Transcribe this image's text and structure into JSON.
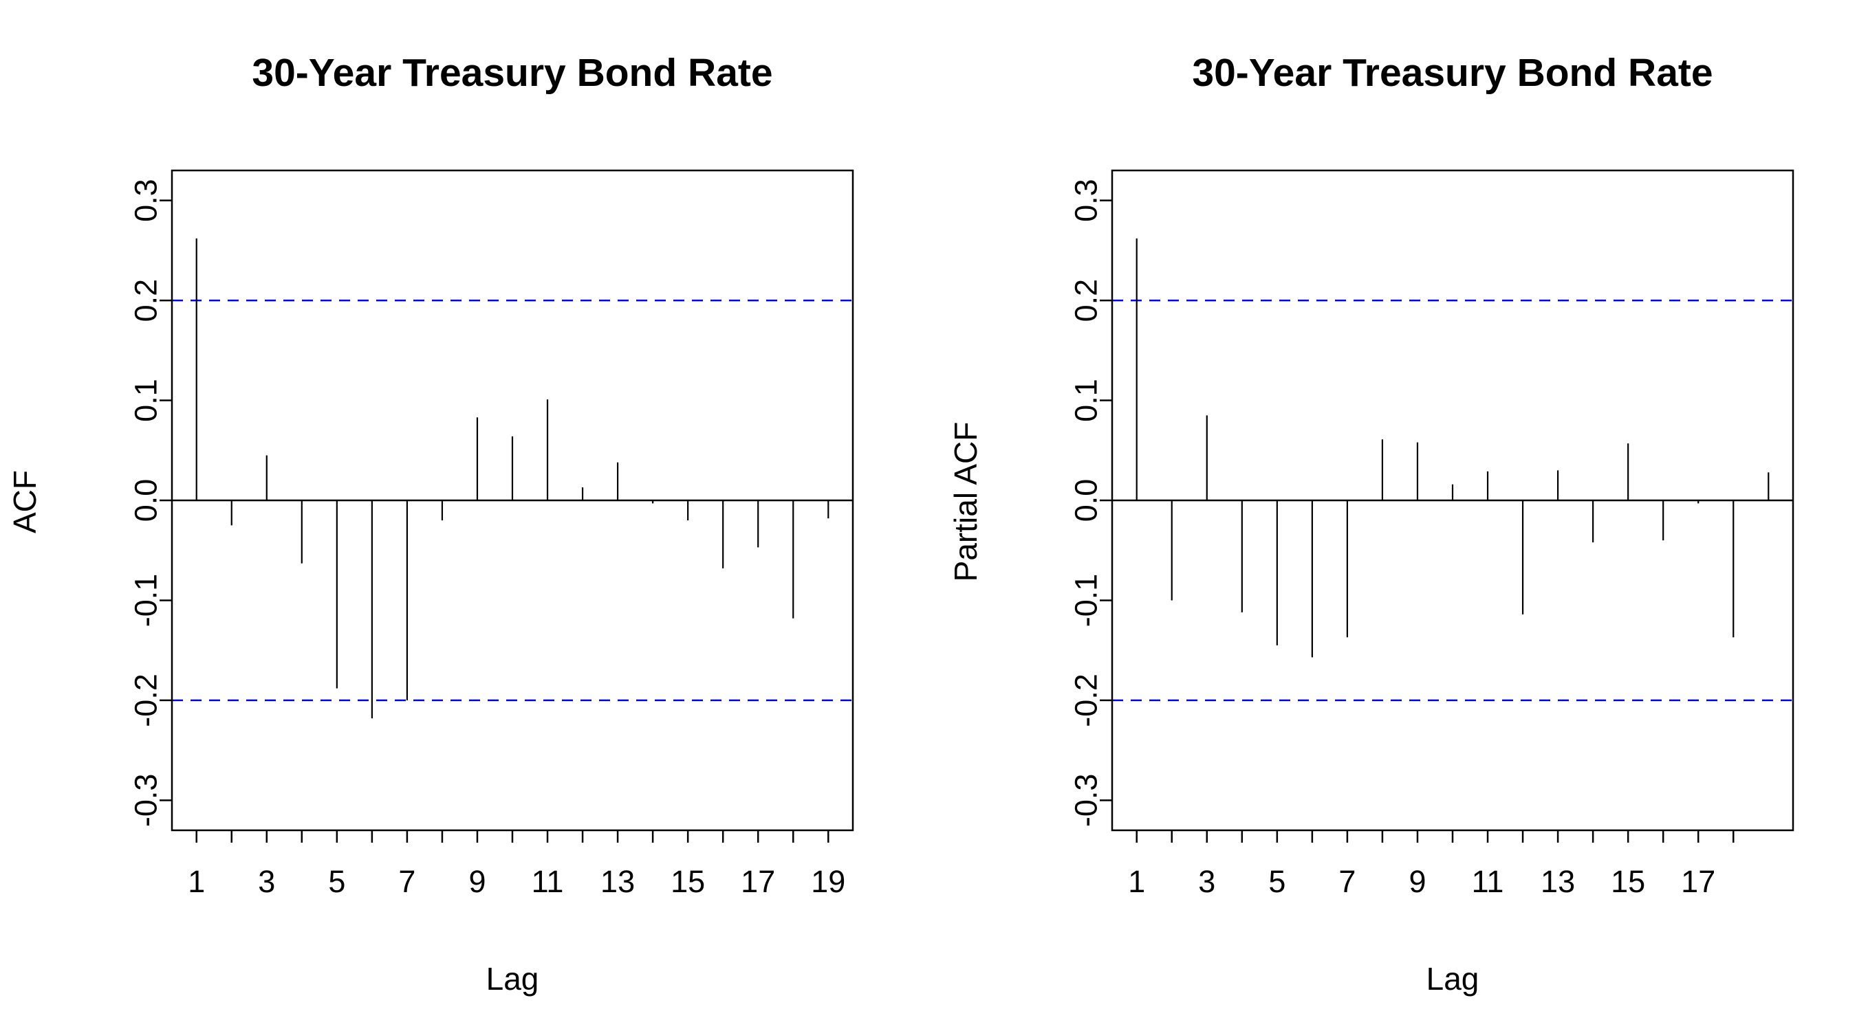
{
  "colors": {
    "confidence_band": "#0000ff",
    "spike": "#000000"
  },
  "chart_data": [
    {
      "type": "bar",
      "title": "30-Year Treasury Bond Rate",
      "xlabel": "Lag",
      "ylabel": "ACF",
      "ylim": [
        -0.33,
        0.33
      ],
      "yticks": [
        "-0.3",
        "-0.2",
        "-0.1",
        "0.0",
        "0.1",
        "0.2",
        "0.3"
      ],
      "xlim": [
        0.3,
        19.7
      ],
      "xticks": [
        1,
        2,
        3,
        4,
        5,
        6,
        7,
        8,
        9,
        10,
        11,
        12,
        13,
        14,
        15,
        16,
        17,
        18,
        19
      ],
      "xtick_labels": [
        "1",
        "",
        "3",
        "",
        "5",
        "",
        "7",
        "",
        "9",
        "",
        "11",
        "",
        "13",
        "",
        "15",
        "",
        "17",
        "",
        "19"
      ],
      "confidence_bounds": [
        0.2,
        -0.2
      ],
      "x": [
        1,
        2,
        3,
        4,
        5,
        6,
        7,
        8,
        9,
        10,
        11,
        12,
        13,
        14,
        15,
        16,
        17,
        18,
        19
      ],
      "values": [
        0.262,
        -0.025,
        0.045,
        -0.063,
        -0.188,
        -0.218,
        -0.2,
        -0.02,
        0.083,
        0.064,
        0.101,
        0.013,
        0.038,
        -0.003,
        -0.02,
        -0.068,
        -0.047,
        -0.118,
        -0.018
      ],
      "grid": false
    },
    {
      "type": "bar",
      "title": "30-Year Treasury Bond Rate",
      "xlabel": "Lag",
      "ylabel": "Partial ACF",
      "ylim": [
        -0.33,
        0.33
      ],
      "yticks": [
        "-0.3",
        "-0.2",
        "-0.1",
        "0.0",
        "0.1",
        "0.2",
        "0.3"
      ],
      "xlim": [
        0.3,
        19.7
      ],
      "xticks": [
        1,
        2,
        3,
        4,
        5,
        6,
        7,
        8,
        9,
        10,
        11,
        12,
        13,
        14,
        15,
        16,
        17,
        18
      ],
      "xtick_labels": [
        "1",
        "",
        "3",
        "",
        "5",
        "",
        "7",
        "",
        "9",
        "",
        "11",
        "",
        "13",
        "",
        "15",
        "",
        "17",
        ""
      ],
      "confidence_bounds": [
        0.2,
        -0.2
      ],
      "x": [
        1,
        2,
        3,
        4,
        5,
        6,
        7,
        8,
        9,
        10,
        11,
        12,
        13,
        14,
        15,
        16,
        17,
        18,
        19
      ],
      "values": [
        0.262,
        -0.1,
        0.085,
        -0.112,
        -0.145,
        -0.157,
        -0.137,
        0.061,
        0.058,
        0.016,
        0.029,
        -0.114,
        0.03,
        -0.042,
        0.057,
        -0.04,
        -0.003,
        -0.137,
        0.028
      ],
      "grid": false
    }
  ]
}
